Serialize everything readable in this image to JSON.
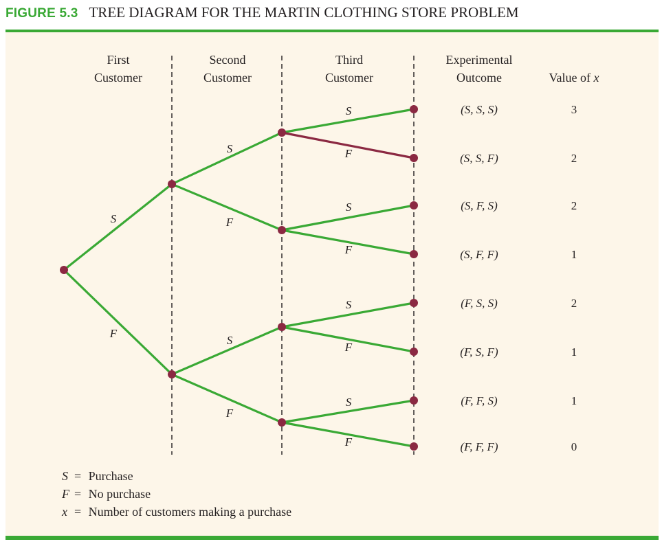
{
  "figure": {
    "number": "FIGURE 5.3",
    "title": "TREE DIAGRAM FOR THE MARTIN CLOTHING STORE PROBLEM"
  },
  "headers": {
    "first_customer": [
      "First",
      "Customer"
    ],
    "second_customer": [
      "Second",
      "Customer"
    ],
    "third_customer": [
      "Third",
      "Customer"
    ],
    "experimental_outcome": [
      "Experimental",
      "Outcome"
    ],
    "value_of_x_prefix": "Value of ",
    "value_of_x_var": "x"
  },
  "stage1": [
    {
      "label": "S"
    },
    {
      "label": "F"
    }
  ],
  "stage2": [
    {
      "label": "S"
    },
    {
      "label": "F"
    },
    {
      "label": "S"
    },
    {
      "label": "F"
    }
  ],
  "outcomes": [
    {
      "label": "S",
      "outcome": "(S, S, S)",
      "x": "3",
      "highlight": false
    },
    {
      "label": "F",
      "outcome": "(S, S, F)",
      "x": "2",
      "highlight": true
    },
    {
      "label": "S",
      "outcome": "(S, F, S)",
      "x": "2",
      "highlight": false
    },
    {
      "label": "F",
      "outcome": "(S, F, F)",
      "x": "1",
      "highlight": false
    },
    {
      "label": "S",
      "outcome": "(F, S, S)",
      "x": "2",
      "highlight": false
    },
    {
      "label": "F",
      "outcome": "(F, S, F)",
      "x": "1",
      "highlight": false
    },
    {
      "label": "S",
      "outcome": "(F, F, S)",
      "x": "1",
      "highlight": false
    },
    {
      "label": "F",
      "outcome": "(F, F, F)",
      "x": "0",
      "highlight": false
    }
  ],
  "legend": [
    {
      "symbol": "S",
      "eq": "=",
      "meaning": "Purchase"
    },
    {
      "symbol": "F",
      "eq": "=",
      "meaning": "No purchase"
    },
    {
      "symbol": "x",
      "eq": "=",
      "meaning": "Number of customers making a purchase"
    }
  ],
  "colors": {
    "branch": "#3aa935",
    "highlight_branch": "#8b2942",
    "node": "#8b2942",
    "accent": "#3aa935",
    "panel": "#fdf6e9"
  }
}
